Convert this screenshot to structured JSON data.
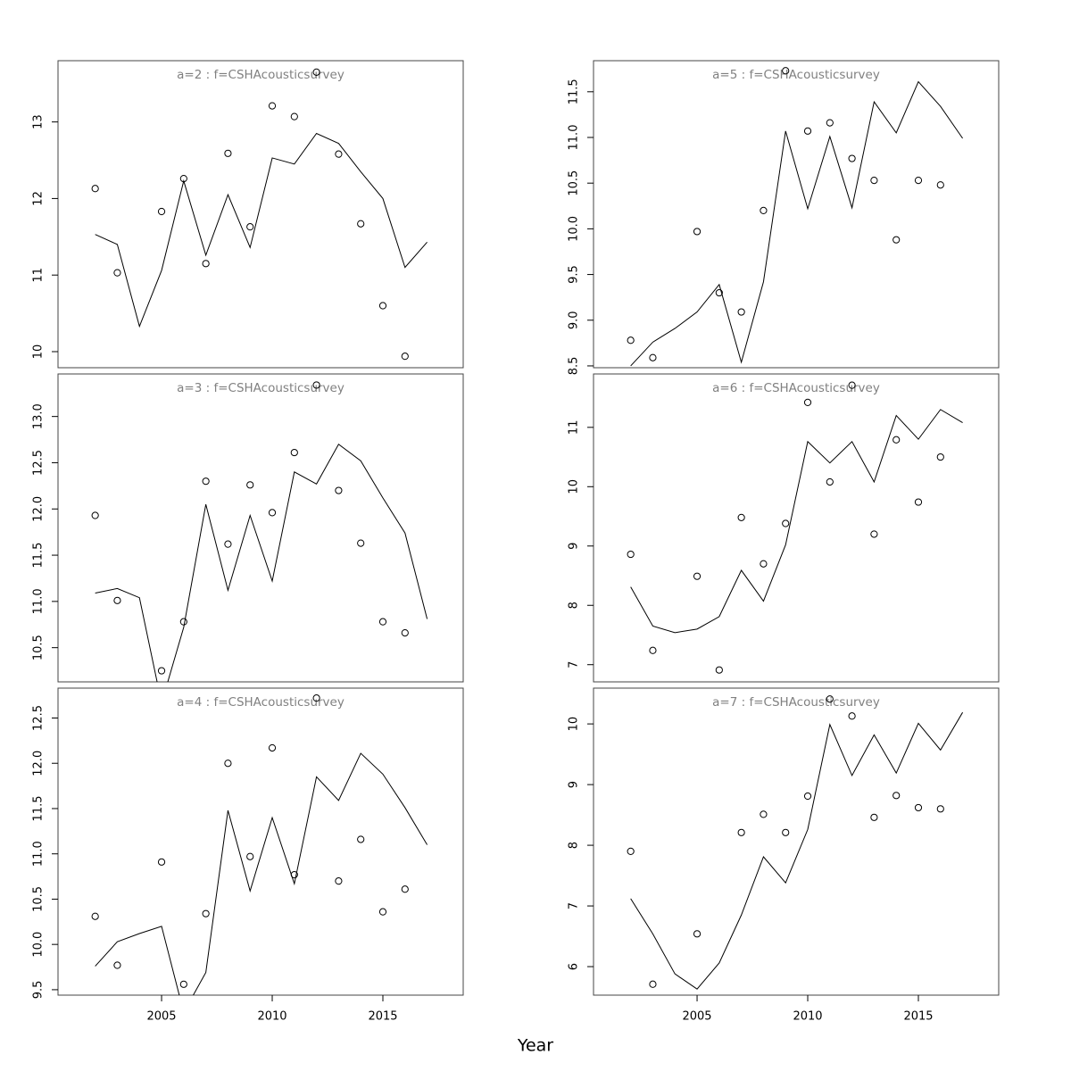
{
  "xlabel": "Year",
  "chart_data": [
    {
      "type": "line",
      "title": "a=2  :  f=CSHAcousticsurvey",
      "x": [
        2002,
        2003,
        2004,
        2005,
        2006,
        2007,
        2008,
        2009,
        2010,
        2011,
        2012,
        2013,
        2014,
        2015,
        2016,
        2017
      ],
      "series": [
        {
          "mode": "lines",
          "color": "#000000",
          "values": [
            11.53,
            11.4,
            10.33,
            11.06,
            12.23,
            11.26,
            12.05,
            11.36,
            12.53,
            12.45,
            12.85,
            12.72,
            12.35,
            12.0,
            11.1,
            11.43
          ]
        },
        {
          "mode": "points",
          "color": "#000000",
          "values": [
            12.13,
            11.03,
            null,
            11.83,
            12.26,
            11.15,
            12.59,
            11.63,
            13.21,
            13.07,
            13.65,
            12.58,
            11.67,
            10.6,
            9.94,
            null
          ]
        }
      ],
      "xlim": [
        2000.32,
        2018.63
      ],
      "ylim": [
        9.79,
        13.8
      ],
      "yticks": [
        10,
        11,
        12,
        13
      ]
    },
    {
      "type": "line",
      "title": "a=3  :  f=CSHAcousticsurvey",
      "x": [
        2002,
        2003,
        2004,
        2005,
        2006,
        2007,
        2008,
        2009,
        2010,
        2011,
        2012,
        2013,
        2014,
        2015,
        2016,
        2017
      ],
      "series": [
        {
          "mode": "lines",
          "color": "#000000",
          "values": [
            11.09,
            11.14,
            11.04,
            9.9,
            10.72,
            12.05,
            11.12,
            11.93,
            11.22,
            12.4,
            12.27,
            12.7,
            12.52,
            12.12,
            11.74,
            10.81
          ]
        },
        {
          "mode": "points",
          "color": "#000000",
          "values": [
            11.93,
            11.01,
            null,
            10.25,
            10.78,
            12.3,
            11.62,
            12.26,
            11.96,
            12.61,
            13.34,
            12.2,
            11.63,
            10.78,
            10.66,
            null
          ]
        }
      ],
      "xlim": [
        2000.32,
        2018.63
      ],
      "ylim": [
        10.13,
        13.46
      ],
      "yticks": [
        {
          "value": 10.5,
          "label": "10.5"
        },
        {
          "value": 11,
          "label": "11.0"
        },
        {
          "value": 11.5,
          "label": "11.5"
        },
        {
          "value": 12,
          "label": "12.0"
        },
        {
          "value": 12.5,
          "label": "12.5"
        },
        {
          "value": 13,
          "label": "13.0"
        }
      ]
    },
    {
      "type": "line",
      "title": "a=4  :  f=CSHAcousticsurvey",
      "x": [
        2002,
        2003,
        2004,
        2005,
        2006,
        2007,
        2008,
        2009,
        2010,
        2011,
        2012,
        2013,
        2014,
        2015,
        2016,
        2017
      ],
      "series": [
        {
          "mode": "lines",
          "color": "#000000",
          "values": [
            9.76,
            10.03,
            10.12,
            10.2,
            9.25,
            9.69,
            11.48,
            10.59,
            11.4,
            10.67,
            11.85,
            11.59,
            12.11,
            11.88,
            11.51,
            11.1
          ]
        },
        {
          "mode": "points",
          "color": "#000000",
          "values": [
            10.31,
            9.77,
            null,
            10.91,
            9.56,
            10.34,
            12.0,
            10.97,
            12.17,
            10.77,
            12.72,
            10.7,
            11.16,
            10.36,
            10.61,
            null
          ]
        }
      ],
      "xlim": [
        2000.32,
        2018.63
      ],
      "ylim": [
        9.44,
        12.83
      ],
      "yticks": [
        9.5,
        {
          "value": 10,
          "label": "10.0"
        },
        10.5,
        {
          "value": 11,
          "label": "11.0"
        },
        11.5,
        {
          "value": 12,
          "label": "12.0"
        },
        12.5
      ],
      "xticks": [
        2005,
        2010,
        2015
      ]
    },
    {
      "type": "line",
      "title": "a=5  :  f=CSHAcousticsurvey",
      "x": [
        2002,
        2003,
        2004,
        2005,
        2006,
        2007,
        2008,
        2009,
        2010,
        2011,
        2012,
        2013,
        2014,
        2015,
        2016,
        2017
      ],
      "series": [
        {
          "mode": "lines",
          "color": "#000000",
          "values": [
            8.5,
            8.76,
            8.91,
            9.09,
            9.39,
            8.54,
            9.42,
            11.07,
            10.22,
            11.01,
            10.23,
            11.39,
            11.05,
            11.61,
            11.34,
            10.99
          ]
        },
        {
          "mode": "points",
          "color": "#000000",
          "values": [
            8.78,
            8.59,
            null,
            9.97,
            9.3,
            9.09,
            10.2,
            11.73,
            11.07,
            11.16,
            10.77,
            10.53,
            9.88,
            10.53,
            10.48,
            null
          ]
        }
      ],
      "xlim": [
        2000.32,
        2018.63
      ],
      "ylim": [
        8.48,
        11.84
      ],
      "yticks": [
        8.5,
        {
          "value": 9,
          "label": "9.0"
        },
        9.5,
        {
          "value": 10,
          "label": "10.0"
        },
        10.5,
        {
          "value": 11,
          "label": "11.0"
        },
        11.5
      ]
    },
    {
      "type": "line",
      "title": "a=6  :  f=CSHAcousticsurvey",
      "x": [
        2002,
        2003,
        2004,
        2005,
        2006,
        2007,
        2008,
        2009,
        2010,
        2011,
        2012,
        2013,
        2014,
        2015,
        2016,
        2017
      ],
      "series": [
        {
          "mode": "lines",
          "color": "#000000",
          "values": [
            8.31,
            7.65,
            7.54,
            7.6,
            7.81,
            8.59,
            8.07,
            9.02,
            10.76,
            10.4,
            10.76,
            10.08,
            11.2,
            10.8,
            11.3,
            11.08
          ]
        },
        {
          "mode": "points",
          "color": "#000000",
          "values": [
            8.86,
            7.24,
            null,
            8.49,
            6.91,
            9.48,
            8.7,
            9.38,
            11.42,
            10.08,
            11.71,
            9.2,
            10.79,
            9.74,
            10.5,
            null
          ]
        }
      ],
      "xlim": [
        2000.32,
        2018.63
      ],
      "ylim": [
        6.71,
        11.9
      ],
      "yticks": [
        7,
        8,
        9,
        10,
        11
      ]
    },
    {
      "type": "line",
      "title": "a=7  :  f=CSHAcousticsurvey",
      "x": [
        2002,
        2003,
        2004,
        2005,
        2006,
        2007,
        2008,
        2009,
        2010,
        2011,
        2012,
        2013,
        2014,
        2015,
        2016,
        2017
      ],
      "series": [
        {
          "mode": "lines",
          "color": "#000000",
          "values": [
            7.12,
            6.54,
            5.88,
            5.63,
            6.06,
            6.85,
            7.81,
            7.38,
            8.26,
            9.99,
            9.15,
            9.82,
            9.19,
            10.01,
            9.57,
            10.19
          ]
        },
        {
          "mode": "points",
          "color": "#000000",
          "values": [
            7.9,
            5.71,
            null,
            6.54,
            null,
            8.21,
            8.51,
            8.21,
            8.81,
            10.41,
            10.13,
            8.46,
            8.82,
            8.62,
            8.6,
            null
          ]
        }
      ],
      "xlim": [
        2000.32,
        2018.63
      ],
      "ylim": [
        5.53,
        10.59
      ],
      "yticks": [
        6,
        7,
        8,
        9,
        10
      ],
      "xticks": [
        2005,
        2010,
        2015
      ]
    }
  ]
}
